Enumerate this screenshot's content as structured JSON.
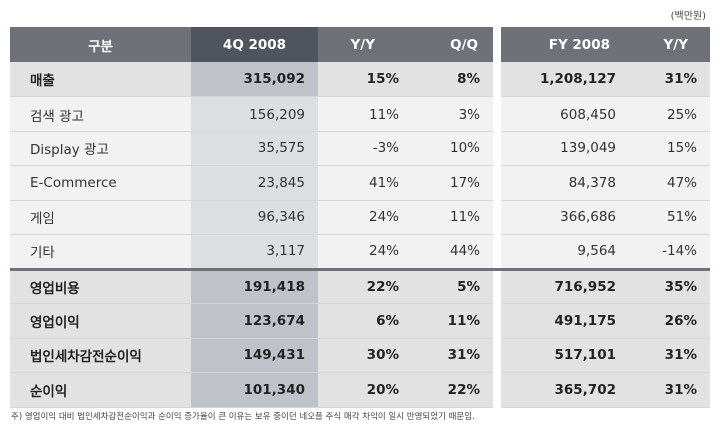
{
  "unit_label": "(백만원)",
  "headers": {
    "name": "구분",
    "q4": "4Q 2008",
    "yy": "Y/Y",
    "qq": "Q/Q",
    "fy": "FY 2008",
    "fyy": "Y/Y"
  },
  "rows": [
    {
      "name": "매출",
      "q4": "315,092",
      "yy": "15%",
      "qq": "8%",
      "fy": "1,208,127",
      "fyy": "31%"
    },
    {
      "name": "검색 광고",
      "q4": "156,209",
      "yy": "11%",
      "qq": "3%",
      "fy": "608,450",
      "fyy": "25%"
    },
    {
      "name": "Display 광고",
      "q4": "35,575",
      "yy": "-3%",
      "qq": "10%",
      "fy": "139,049",
      "fyy": "15%"
    },
    {
      "name": "E-Commerce",
      "q4": "23,845",
      "yy": "41%",
      "qq": "17%",
      "fy": "84,378",
      "fyy": "47%"
    },
    {
      "name": "게임",
      "q4": "96,346",
      "yy": "24%",
      "qq": "11%",
      "fy": "366,686",
      "fyy": "51%"
    },
    {
      "name": "기타",
      "q4": "3,117",
      "yy": "24%",
      "qq": "44%",
      "fy": "9,564",
      "fyy": "-14%"
    },
    {
      "name": "영업비용",
      "q4": "191,418",
      "yy": "22%",
      "qq": "5%",
      "fy": "716,952",
      "fyy": "35%"
    },
    {
      "name": "영업이익",
      "q4": "123,674",
      "yy": "6%",
      "qq": "11%",
      "fy": "491,175",
      "fyy": "26%"
    },
    {
      "name": "법인세차감전순이익",
      "q4": "149,431",
      "yy": "30%",
      "qq": "31%",
      "fy": "517,101",
      "fyy": "31%"
    },
    {
      "name": "순이익",
      "q4": "101,340",
      "yy": "20%",
      "qq": "22%",
      "fy": "365,702",
      "fyy": "31%"
    }
  ],
  "footnote": "주) 영업이익 대비 법인세차감전순이익과 순이익 증가율이 큰 이유는 보유 중이던 네오플 주식 매각 차익이 일시 반영되었기 때문임."
}
